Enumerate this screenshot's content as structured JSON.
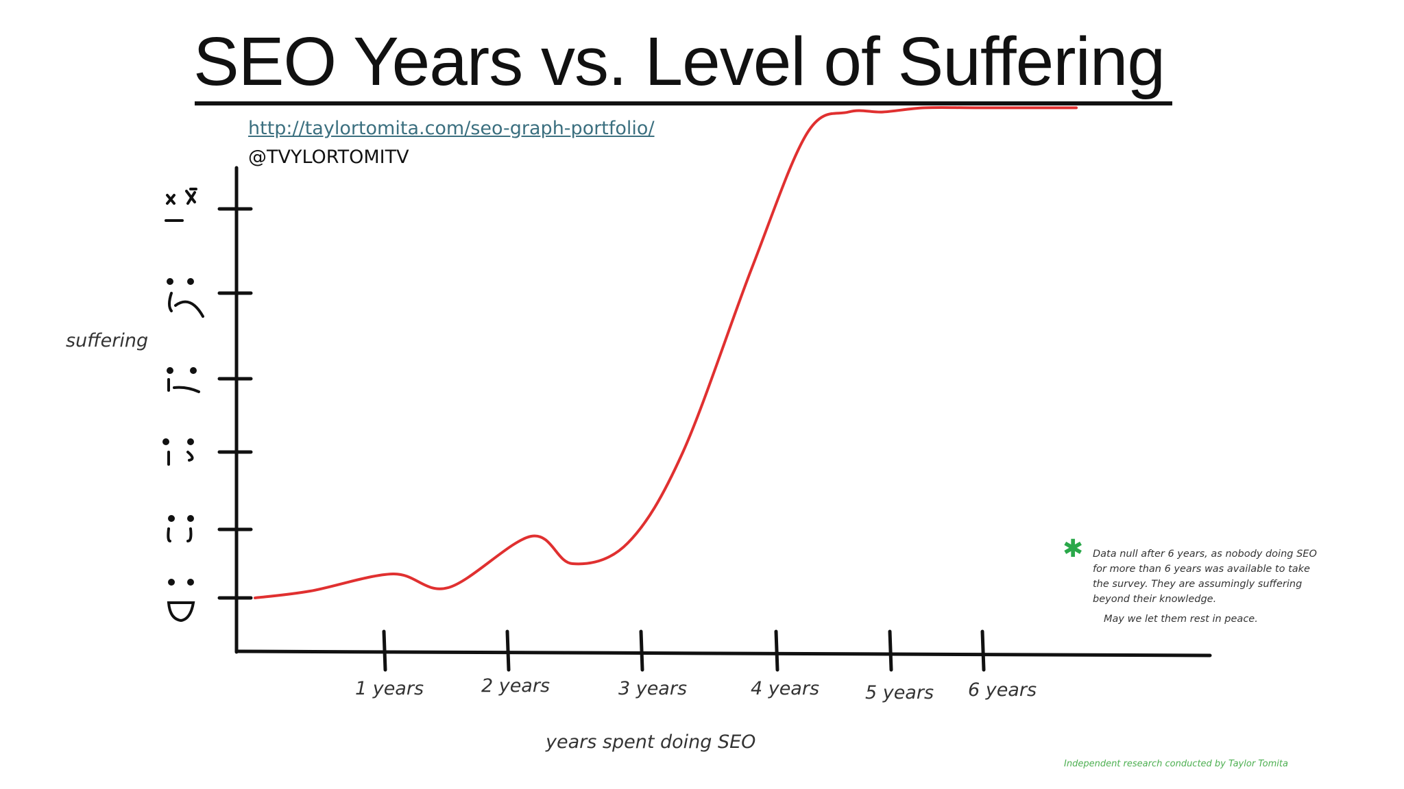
{
  "chart_data": {
    "type": "line",
    "title": "SEO Years vs. Level of Suffering",
    "source_url": "http://taylortomita.com/seo-graph-portfolio/",
    "handle": "@TVYLORTOMITV",
    "xlabel": "years spent doing SEO",
    "ylabel": "suffering",
    "categories": [
      "1 years",
      "2 years",
      "3 years",
      "4 years",
      "5 years",
      "6 years"
    ],
    "xlim": [
      0,
      7
    ],
    "ylim": [
      -0.5,
      6.2
    ],
    "y_levels": [
      {
        "level": 0,
        "face": "D:"
      },
      {
        "level": 1,
        "face": ":("
      },
      {
        "level": 2,
        "face": ":|"
      },
      {
        "level": 3,
        "face": ":'("
      },
      {
        "level": 4,
        "face": ":("
      },
      {
        "level": 5,
        "face": "x_x"
      }
    ],
    "series": [
      {
        "color": "#e03030",
        "x": [
          0,
          0.4,
          1,
          1.4,
          2,
          2.3,
          2.7,
          3.1,
          3.6,
          4.0,
          4.3,
          4.55,
          4.85,
          5.25,
          5.95
        ],
        "y": [
          0,
          0.1,
          0.35,
          0.15,
          0.9,
          0.5,
          0.8,
          2.0,
          4.3,
          5.9,
          6.15,
          6.15,
          6.2,
          6.2,
          6.2
        ]
      }
    ],
    "note": "Data null after 6 years, as nobody doing SEO for more than 6 years was available to take the survey. They are assumingly suffering beyond their knowledge.",
    "note_sub": "May we let them rest in peace.",
    "credit": "Independent research conducted by Taylor Tomita",
    "grid": false
  }
}
